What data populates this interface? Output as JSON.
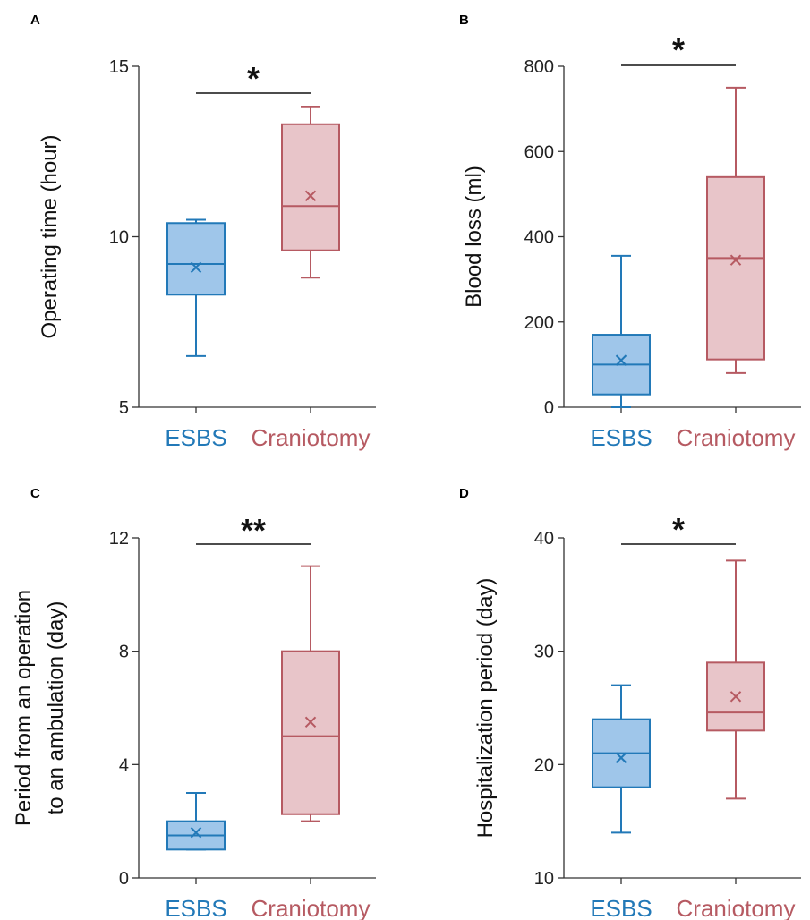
{
  "colors": {
    "esbs_stroke": "#2279b8",
    "esbs_fill": "#9fc6ea",
    "cranio_stroke": "#b65a62",
    "cranio_fill": "#e8c5c9",
    "axis": "#333333"
  },
  "chart_data": [
    {
      "panel": "A",
      "type": "box",
      "ylabel": [
        "Operating time (hour)"
      ],
      "ylim": [
        5,
        15
      ],
      "yticks": [
        5,
        10,
        15
      ],
      "categories": [
        "ESBS",
        "Craniotomy"
      ],
      "boxes": [
        {
          "whisker_low": 6.5,
          "q1": 8.3,
          "median": 9.2,
          "q3": 10.4,
          "whisker_high": 10.5,
          "mean": 9.1
        },
        {
          "whisker_low": 8.8,
          "q1": 9.6,
          "median": 10.9,
          "q3": 13.3,
          "whisker_high": 13.8,
          "mean": 11.2
        }
      ],
      "significance": "*"
    },
    {
      "panel": "B",
      "type": "box",
      "ylabel": [
        "Blood loss (ml)"
      ],
      "ylim": [
        0,
        800
      ],
      "yticks": [
        0,
        200,
        400,
        600,
        800
      ],
      "categories": [
        "ESBS",
        "Craniotomy"
      ],
      "boxes": [
        {
          "whisker_low": 0,
          "q1": 30,
          "median": 100,
          "q3": 170,
          "whisker_high": 355,
          "mean": 110
        },
        {
          "whisker_low": 80,
          "q1": 112,
          "median": 350,
          "q3": 540,
          "whisker_high": 750,
          "mean": 345
        }
      ],
      "significance": "*"
    },
    {
      "panel": "C",
      "type": "box",
      "ylabel": [
        "Period from an operation",
        "to an ambulation (day)"
      ],
      "ylim": [
        0,
        12
      ],
      "yticks": [
        0,
        4,
        8,
        12
      ],
      "categories": [
        "ESBS",
        "Craniotomy"
      ],
      "boxes": [
        {
          "whisker_low": 1,
          "q1": 1,
          "median": 1.5,
          "q3": 2,
          "whisker_high": 3,
          "mean": 1.6
        },
        {
          "whisker_low": 2,
          "q1": 2.25,
          "median": 5,
          "q3": 8,
          "whisker_high": 11,
          "mean": 5.5
        }
      ],
      "significance": "**"
    },
    {
      "panel": "D",
      "type": "box",
      "ylabel": [
        "Hospitalization period (day)"
      ],
      "ylim": [
        10,
        40
      ],
      "yticks": [
        10,
        20,
        30,
        40
      ],
      "categories": [
        "ESBS",
        "Craniotomy"
      ],
      "boxes": [
        {
          "whisker_low": 14,
          "q1": 18,
          "median": 21,
          "q3": 24,
          "whisker_high": 27,
          "mean": 20.6
        },
        {
          "whisker_low": 17,
          "q1": 23,
          "median": 24.6,
          "q3": 29,
          "whisker_high": 38,
          "mean": 26
        }
      ],
      "significance": "*"
    }
  ]
}
